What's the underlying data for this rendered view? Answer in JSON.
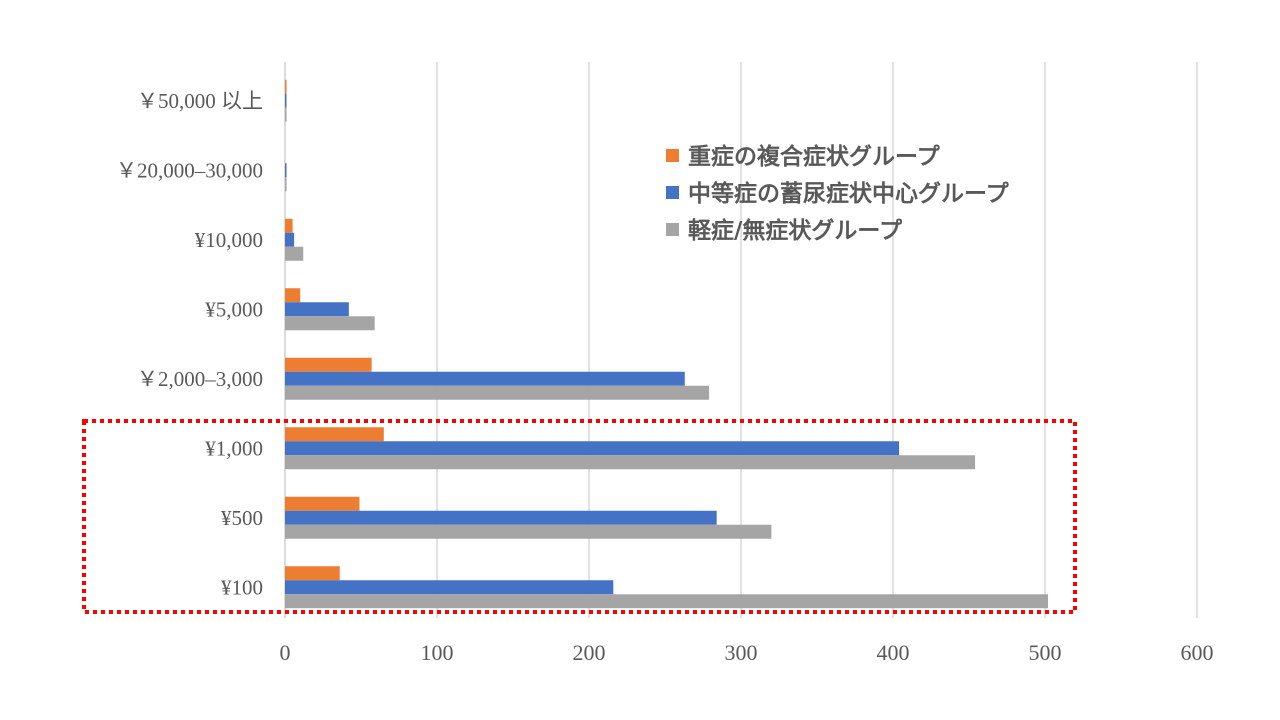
{
  "chart_data": {
    "type": "bar",
    "orientation": "horizontal",
    "title": "",
    "xlabel": "",
    "ylabel": "",
    "xlim": [
      0,
      600
    ],
    "x_ticks": [
      "0",
      "100",
      "200",
      "300",
      "400",
      "500",
      "600"
    ],
    "grid": true,
    "legend_position": "top-right",
    "categories": [
      "¥100",
      "¥500",
      "¥1,000",
      "￥2,000–3,000",
      "¥5,000",
      "¥10,000",
      "￥20,000–30,000",
      "￥50,000 以上"
    ],
    "series": [
      {
        "name": "重症の複合症状グループ",
        "color": "#ED7D31",
        "values": [
          36,
          49,
          65,
          57,
          10,
          5,
          0,
          1
        ]
      },
      {
        "name": "中等症の蓄尿症状中心グループ",
        "color": "#4472C4",
        "values": [
          216,
          284,
          404,
          263,
          42,
          6,
          1,
          1
        ]
      },
      {
        "name": "軽症/無症状グループ",
        "color": "#A5A5A5",
        "values": [
          502,
          320,
          454,
          279,
          59,
          12,
          1,
          1
        ]
      }
    ],
    "annotations": [
      {
        "type": "dotted-box",
        "color": "#FF0000",
        "highlights": [
          "¥100",
          "¥500",
          "¥1,000"
        ]
      }
    ]
  }
}
